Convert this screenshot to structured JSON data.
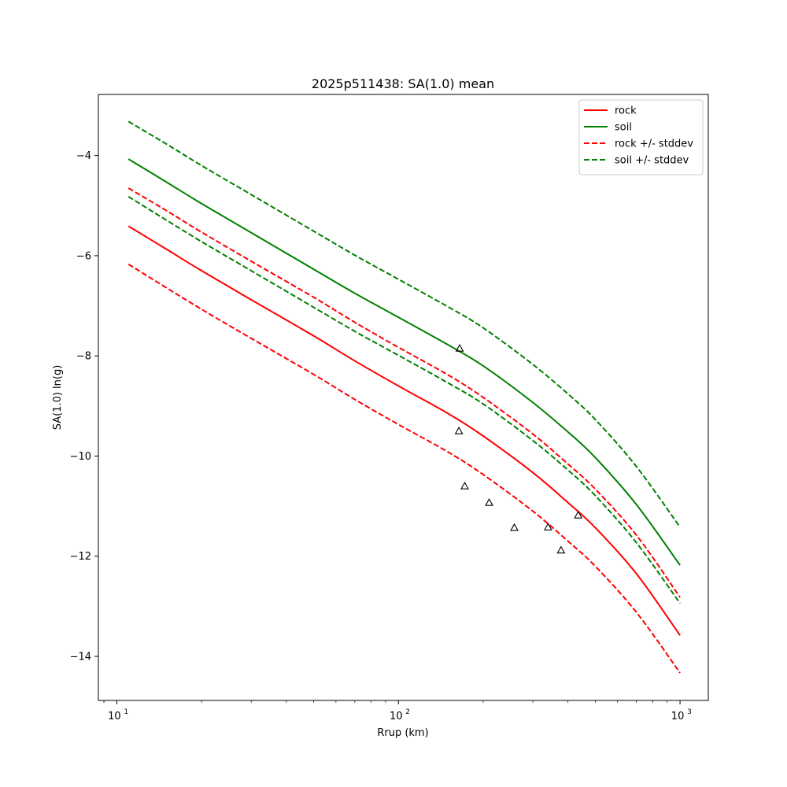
{
  "chart_data": {
    "type": "line",
    "title": "2025p511438: SA(1.0) mean",
    "xlabel": "Rrup (km)",
    "ylabel": "SA(1.0) ln(g)",
    "xscale": "log",
    "xlim": [
      8.6,
      1260
    ],
    "ylim": [
      -14.88,
      -2.78
    ],
    "xticks": [
      {
        "value": 10,
        "base": "10",
        "exp": "1"
      },
      {
        "value": 100,
        "base": "10",
        "exp": "2"
      },
      {
        "value": 1000,
        "base": "10",
        "exp": "3"
      }
    ],
    "yticks": [
      {
        "value": -14,
        "label": "−14"
      },
      {
        "value": -12,
        "label": "−12"
      },
      {
        "value": -10,
        "label": "−10"
      },
      {
        "value": -8,
        "label": "−8"
      },
      {
        "value": -6,
        "label": "−6"
      },
      {
        "value": -4,
        "label": "−4"
      }
    ],
    "grid": false,
    "legend_position": "top-right",
    "x": [
      11,
      15,
      20,
      30,
      50,
      70,
      100,
      150,
      200,
      300,
      400,
      500,
      700,
      1000
    ],
    "series": [
      {
        "name": "rock",
        "color": "#ff0000",
        "style": "solid",
        "values": [
          -5.41,
          -5.87,
          -6.3,
          -6.88,
          -7.6,
          -8.1,
          -8.6,
          -9.15,
          -9.6,
          -10.33,
          -10.93,
          -11.43,
          -12.35,
          -13.58
        ]
      },
      {
        "name": "soil",
        "color": "#008000",
        "style": "solid",
        "values": [
          -4.07,
          -4.53,
          -4.96,
          -5.54,
          -6.27,
          -6.75,
          -7.23,
          -7.78,
          -8.2,
          -8.93,
          -9.52,
          -10.03,
          -10.97,
          -12.18
        ]
      },
      {
        "name": "rock +/- stddev",
        "color": "#ff0000",
        "style": "dashed",
        "values": [
          -4.65,
          -5.1,
          -5.53,
          -6.11,
          -6.83,
          -7.33,
          -7.83,
          -8.38,
          -8.83,
          -9.56,
          -10.16,
          -10.66,
          -11.58,
          -12.82
        ]
      },
      {
        "name": "",
        "color": "#ff0000",
        "style": "dashed",
        "values": [
          -6.17,
          -6.64,
          -7.07,
          -7.65,
          -8.37,
          -8.87,
          -9.37,
          -9.92,
          -10.37,
          -11.1,
          -11.7,
          -12.2,
          -13.12,
          -14.33
        ]
      },
      {
        "name": "soil +/- stddev",
        "color": "#008000",
        "style": "dashed",
        "values": [
          -3.32,
          -3.77,
          -4.2,
          -4.78,
          -5.51,
          -5.99,
          -6.47,
          -7.02,
          -7.44,
          -8.17,
          -8.76,
          -9.27,
          -10.21,
          -11.42
        ]
      },
      {
        "name": "",
        "color": "#008000",
        "style": "dashed",
        "values": [
          -4.82,
          -5.29,
          -5.72,
          -6.3,
          -7.03,
          -7.51,
          -7.99,
          -8.54,
          -8.96,
          -9.69,
          -10.28,
          -10.79,
          -11.73,
          -12.94
        ]
      }
    ],
    "observations": {
      "marker": "triangle",
      "color": "#000000",
      "points": [
        {
          "x": 165,
          "y": -7.85
        },
        {
          "x": 164,
          "y": -9.5
        },
        {
          "x": 172,
          "y": -10.6
        },
        {
          "x": 210,
          "y": -10.93
        },
        {
          "x": 258,
          "y": -11.43
        },
        {
          "x": 340,
          "y": -11.42
        },
        {
          "x": 378,
          "y": -11.88
        },
        {
          "x": 435,
          "y": -11.18
        }
      ]
    }
  }
}
